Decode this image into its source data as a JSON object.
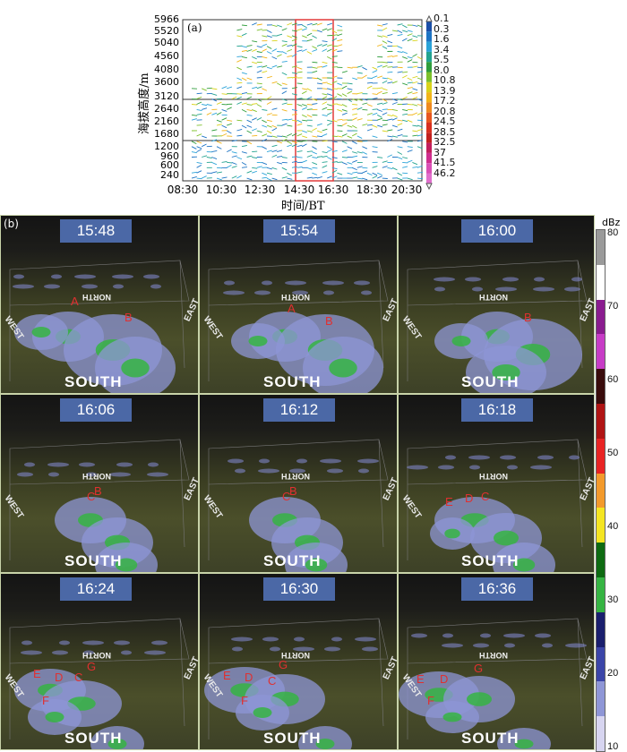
{
  "panel_a": {
    "label": "(a)",
    "ylabel": "海拔高度/m",
    "xlabel": "时间/BT",
    "y_ticks": [
      "5966",
      "5520",
      "5040",
      "4560",
      "4080",
      "3600",
      "3120",
      "2640",
      "2160",
      "1680",
      "1200",
      "960",
      "600",
      "240"
    ],
    "x_ticks": [
      "08:30",
      "10:30",
      "12:30",
      "14:30",
      "16:30",
      "18:30",
      "20:30"
    ],
    "windspeed_ticks": [
      "0.1",
      "0.3",
      "1.6",
      "3.4",
      "5.5",
      "8.0",
      "10.8",
      "13.9",
      "17.2",
      "20.8",
      "24.5",
      "28.5",
      "32.5",
      "37",
      "41.5",
      "46.2"
    ],
    "windspeed_colors": [
      "#1a4fa8",
      "#1d74c4",
      "#2aa3d8",
      "#23a38f",
      "#2f9d3c",
      "#7cc02a",
      "#d9d21a",
      "#f2b418",
      "#ef8a1e",
      "#e8571f",
      "#d8301f",
      "#c2201e",
      "#c21e5c",
      "#cf2d8e",
      "#d94fb5",
      "#e06fcc"
    ]
  },
  "panel_b": {
    "label": "(b)",
    "colorbar_unit": "dBz",
    "colorbar_ticks": [
      "80",
      "70",
      "60",
      "50",
      "40",
      "30",
      "20",
      "10"
    ],
    "colorbar_colors": [
      "#9a9a9a",
      "#ffffff",
      "#8a1c8f",
      "#c73cc6",
      "#3a0c0c",
      "#b01414",
      "#e82424",
      "#f39a2c",
      "#f4e522",
      "#0e6b12",
      "#36b443",
      "#1a1f6e",
      "#3b45a8",
      "#8e96d6",
      "#d7d5f0"
    ],
    "compass": {
      "north": "NORTH",
      "south": "SOUTH",
      "west": "WEST",
      "east": "EAST"
    },
    "panels": [
      {
        "time": "15:48",
        "marks": [
          "A",
          "B"
        ]
      },
      {
        "time": "15:54",
        "marks": [
          "A",
          "B"
        ]
      },
      {
        "time": "16:00",
        "marks": [
          "B"
        ]
      },
      {
        "time": "16:06",
        "marks": [
          "C",
          "B"
        ]
      },
      {
        "time": "16:12",
        "marks": [
          "C",
          "B"
        ]
      },
      {
        "time": "16:18",
        "marks": [
          "E",
          "D",
          "C"
        ]
      },
      {
        "time": "16:24",
        "marks": [
          "E",
          "D",
          "C",
          "G",
          "F"
        ]
      },
      {
        "time": "16:30",
        "marks": [
          "E",
          "D",
          "C",
          "G",
          "F"
        ]
      },
      {
        "time": "16:36",
        "marks": [
          "E",
          "D",
          "G",
          "F"
        ]
      }
    ]
  }
}
